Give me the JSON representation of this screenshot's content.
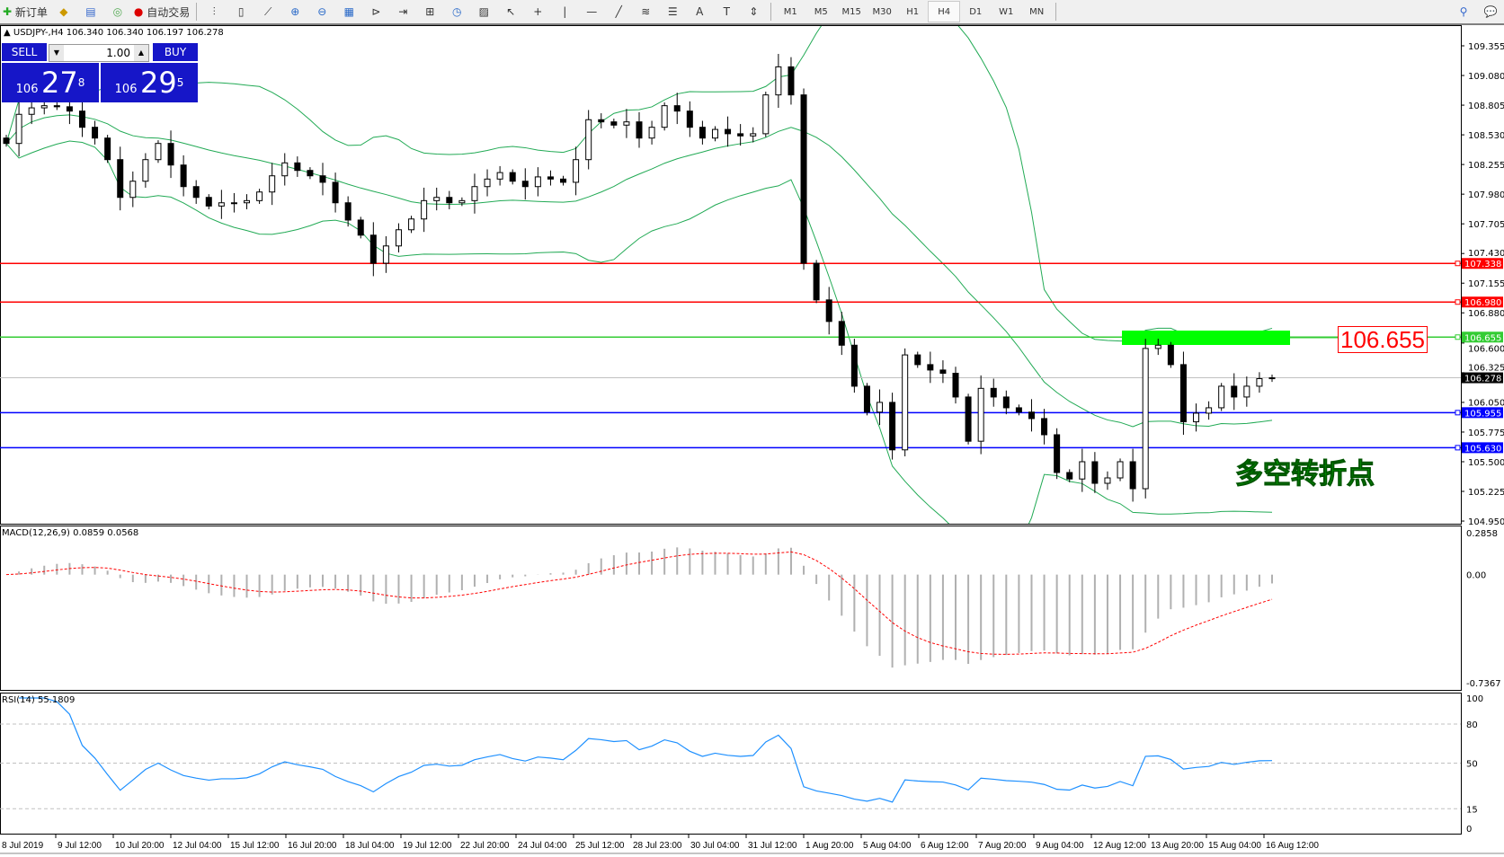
{
  "toolbar": {
    "new_order": "新订单",
    "auto_trading": "自动交易",
    "timeframes": [
      "M1",
      "M5",
      "M15",
      "M30",
      "H1",
      "H4",
      "D1",
      "W1",
      "MN"
    ],
    "active_timeframe": "H4",
    "icons": [
      "bar-chart-icon",
      "candlestick-icon",
      "line-chart-icon",
      "zoom-in-icon",
      "zoom-out-icon",
      "tile-windows-icon",
      "auto-scroll-icon",
      "chart-shift-icon",
      "indicators-icon",
      "periods-icon",
      "templates-icon",
      "cursor-icon",
      "crosshair-icon",
      "vertical-line-icon",
      "horizontal-line-icon",
      "trendline-icon",
      "fibonacci-icon",
      "fibo-lines-icon",
      "text-icon",
      "text-label-icon",
      "arrows-icon"
    ]
  },
  "symbol_header": "USDJPY-,H4  106.340 106.340 106.197 106.278",
  "trade_panel": {
    "sell_label": "SELL",
    "buy_label": "BUY",
    "lot": "1.00",
    "sell_big": "106",
    "sell_main": "27",
    "sell_sup": "8",
    "buy_big": "106",
    "buy_main": "29",
    "buy_sup": "5"
  },
  "annotation": {
    "price_label": "106.655",
    "text": "多空转折点",
    "highlight_color": "#00ff00"
  },
  "macd_label": "MACD(12,26,9) 0.0859 0.0568",
  "rsi_label": "RSI(14) 55.1809",
  "chart_data": {
    "type": "candlestick",
    "symbol": "USDJPY-",
    "timeframe": "H4",
    "price_axis": {
      "min": 104.95,
      "max": 109.355,
      "ticks": [
        "109.355",
        "109.080",
        "108.805",
        "108.530",
        "108.255",
        "107.980",
        "107.705",
        "107.430",
        "107.155",
        "106.880",
        "106.600",
        "106.325",
        "106.050",
        "105.775",
        "105.500",
        "105.225",
        "104.950"
      ]
    },
    "time_labels": [
      "8 Jul 2019",
      "9 Jul 12:00",
      "10 Jul 20:00",
      "12 Jul 04:00",
      "15 Jul 12:00",
      "16 Jul 20:00",
      "18 Jul 04:00",
      "19 Jul 12:00",
      "22 Jul 20:00",
      "24 Jul 04:00",
      "25 Jul 12:00",
      "28 Jul 23:00",
      "30 Jul 04:00",
      "31 Jul 12:00",
      "1 Aug 20:00",
      "5 Aug 04:00",
      "6 Aug 12:00",
      "7 Aug 20:00",
      "9 Aug 04:00",
      "12 Aug 12:00",
      "13 Aug 20:00",
      "15 Aug 04:00",
      "16 Aug 12:00"
    ],
    "closes": [
      108.45,
      108.72,
      108.78,
      108.8,
      108.79,
      108.75,
      108.6,
      108.5,
      108.3,
      107.95,
      108.1,
      108.3,
      108.45,
      108.25,
      108.05,
      107.95,
      107.87,
      107.9,
      107.9,
      107.92,
      108.0,
      108.15,
      108.27,
      108.2,
      108.15,
      108.09,
      107.9,
      107.74,
      107.6,
      107.34,
      107.5,
      107.65,
      107.75,
      107.92,
      107.95,
      107.9,
      107.92,
      108.05,
      108.12,
      108.18,
      108.1,
      108.05,
      108.14,
      108.12,
      108.09,
      108.3,
      108.67,
      108.65,
      108.62,
      108.65,
      108.5,
      108.6,
      108.8,
      108.75,
      108.6,
      108.5,
      108.58,
      108.54,
      108.52,
      108.54,
      108.9,
      109.16,
      108.9,
      107.34,
      107.0,
      106.8,
      106.58,
      106.2,
      105.96,
      106.05,
      105.61,
      106.49,
      106.4,
      106.35,
      106.32,
      106.1,
      105.69,
      106.18,
      106.1,
      106.0,
      105.96,
      105.9,
      105.75,
      105.4,
      105.34,
      105.5,
      105.3,
      105.35,
      105.5,
      105.25,
      106.55,
      106.58,
      106.4,
      105.87,
      105.95,
      106.0,
      106.2,
      106.1,
      106.2,
      106.27,
      106.278
    ],
    "horizontal_lines": [
      {
        "price": 107.338,
        "label": "107.338",
        "color": "#ff0000"
      },
      {
        "price": 106.98,
        "label": "106.980",
        "color": "#ff0000"
      },
      {
        "price": 106.655,
        "label": "106.655",
        "color": "#33cc33"
      },
      {
        "price": 105.955,
        "label": "105.955",
        "color": "#0000ff"
      },
      {
        "price": 105.63,
        "label": "105.630",
        "color": "#0000ff"
      }
    ],
    "current_price": {
      "price": 106.278,
      "label": "106.278"
    },
    "bollinger": {
      "period": 20,
      "deviation": 2,
      "color": "#22aa55"
    },
    "macd": {
      "fast": 12,
      "slow": 26,
      "signal": 9,
      "axis": [
        "0.2858",
        "0.00",
        "-0.7367"
      ],
      "range": [
        -0.7367,
        0.2858
      ],
      "signal_color": "#ff0000"
    },
    "rsi": {
      "period": 14,
      "axis": [
        "100",
        "80",
        "50",
        "15",
        "0"
      ],
      "levels": [
        80,
        50,
        15
      ],
      "color": "#1e90ff"
    }
  }
}
